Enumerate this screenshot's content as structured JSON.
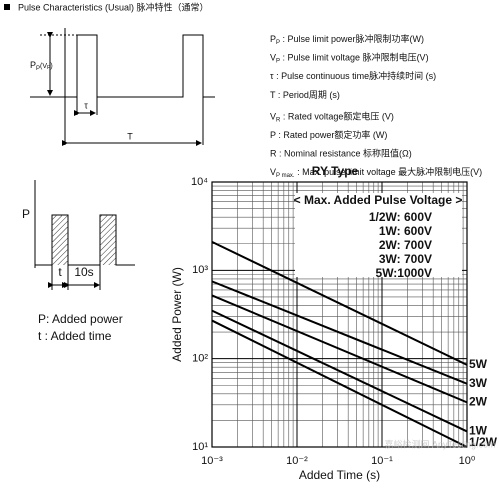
{
  "header": {
    "title": "Pulse Characteristics (Usual) 脉冲特性（通常）"
  },
  "pulse_diagram": {
    "amplitude_label": "P",
    "amplitude_sub": "P",
    "amplitude_paren": "(V",
    "amplitude_paren_sub": "P",
    "amplitude_close": ")",
    "width_label": "τ",
    "period_label": "T"
  },
  "definitions": [
    {
      "symbol": "P",
      "sub": "P",
      "text": " : Pulse limit power脉冲限制功率(W)"
    },
    {
      "symbol": "V",
      "sub": "P",
      "text": " : Pulse limit voltage 脉冲限制电压(V)"
    },
    {
      "symbol": "τ",
      "sub": "",
      "text": " : Pulse continuous time脉冲持续时间 (s)"
    },
    {
      "symbol": "T",
      "sub": "",
      "text": " : Period周期 (s)"
    },
    {
      "symbol": "V",
      "sub": "R",
      "text": " : Rated voltage额定电压 (V)"
    },
    {
      "symbol": "P",
      "sub": "",
      "text": " : Rated power额定功率 (W)"
    },
    {
      "symbol": "R",
      "sub": "",
      "text": " : Nominal resistance 标称阻值(Ω)"
    },
    {
      "symbol": "V",
      "sub": "P max.",
      "text": " : Max. pulse limit voltage 最大脉冲限制电压(V)"
    }
  ],
  "test_diagram": {
    "p_label": "P",
    "t_label": "t",
    "interval_label": "10s",
    "note_p": "P: Added power",
    "note_t": "t : Added time"
  },
  "watermark": "嘉峪检测网 AnyTesting.com",
  "chart_data": {
    "type": "line",
    "title": "RY Type",
    "x_label": "Added Time (s)",
    "y_label": "Added Power (W)",
    "log_x": true,
    "log_y": true,
    "grid": true,
    "xlim": [
      0.001,
      1
    ],
    "xticks": [
      {
        "value": 0.001,
        "label": "10⁻³"
      },
      {
        "value": 0.01,
        "label": "10⁻²"
      },
      {
        "value": 0.1,
        "label": "10⁻¹"
      },
      {
        "value": 1,
        "label": "10⁰"
      }
    ],
    "ylim": [
      10,
      10000
    ],
    "yticks": [
      {
        "value": 10,
        "label": "10¹"
      },
      {
        "value": 100,
        "label": "10²"
      },
      {
        "value": 1000,
        "label": "10³"
      },
      {
        "value": 10000,
        "label": "10⁴"
      }
    ],
    "x": [
      0.001,
      1
    ],
    "series": [
      {
        "name": "5W",
        "color": "#000000",
        "values": [
          2100,
          85
        ]
      },
      {
        "name": "3W",
        "color": "#000000",
        "values": [
          750,
          52
        ]
      },
      {
        "name": "2W",
        "color": "#000000",
        "values": [
          520,
          32
        ]
      },
      {
        "name": "1W",
        "color": "#000000",
        "values": [
          350,
          15
        ]
      },
      {
        "name": "1/2W",
        "color": "#000000",
        "values": [
          270,
          10
        ]
      }
    ],
    "legend_title": "< Max. Added Pulse Voltage >",
    "legend_rows": [
      "1/2W:  600V",
      "1W:  600V",
      "2W:  700V",
      "3W:  700V",
      "5W:1000V"
    ]
  }
}
